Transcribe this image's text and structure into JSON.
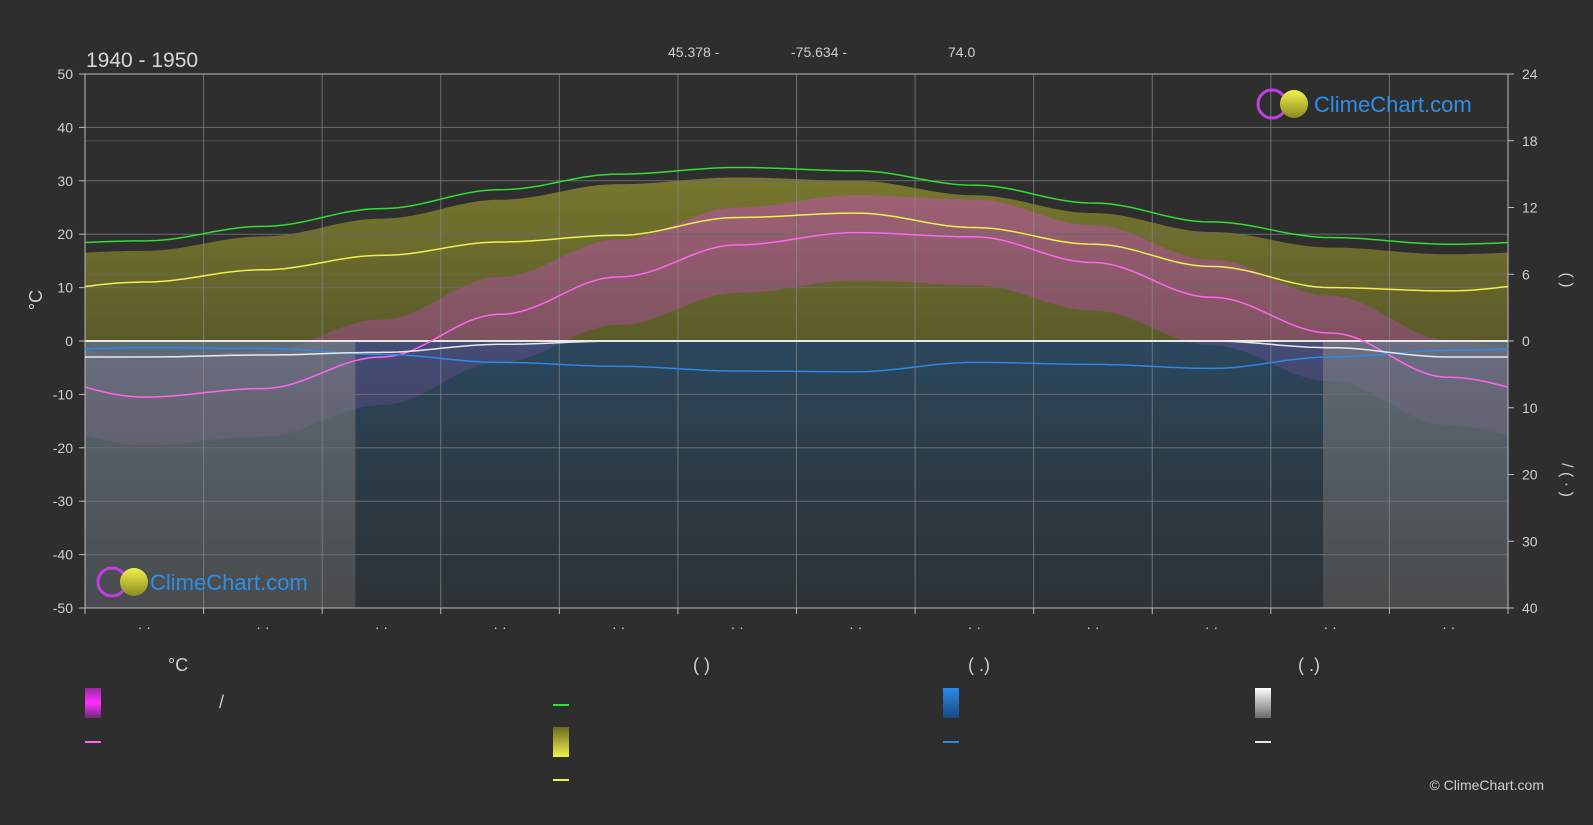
{
  "header": {
    "period": "1940 - 1950",
    "latitude": "45.378 -",
    "longitude": "-75.634 -",
    "elevation": "74.0"
  },
  "logo": {
    "text": "ClimeChart.com"
  },
  "copyright": "© ClimeChart.com",
  "legend": {
    "temp_head": "°C",
    "sun_head": "(            )",
    "rain_head": "(   .)",
    "snow_head": "(   .)",
    "slash": "/"
  },
  "colors": {
    "daylight": "#33dd33",
    "sunshine": "#f0f050",
    "temp_mean": "#ff66ee",
    "temp_range": "#e040e0",
    "rain": "#2a8ae8",
    "snow": "#e8e8e8",
    "grid": "#6a6a6a",
    "background": "#2e2e2e"
  },
  "chart_data": {
    "type": "line",
    "x_label": "",
    "months": [
      "· ·",
      "· ·",
      "· ·",
      "· ·",
      "· ·",
      "· ·",
      "· ·",
      "· ·",
      "· ·",
      "· ·",
      "· ·",
      "· ·"
    ],
    "left_axis": {
      "unit": "°C",
      "min": -50,
      "max": 50,
      "ticks": [
        50,
        40,
        30,
        20,
        10,
        0,
        -10,
        -20,
        -30,
        -40,
        -50
      ]
    },
    "right_axis_top": {
      "min": 0,
      "max": 24,
      "ticks": [
        24,
        18,
        12,
        6,
        0
      ],
      "label": "(     )"
    },
    "right_axis_bottom": {
      "min": 0,
      "max": 40,
      "ticks": [
        0,
        10,
        20,
        30,
        40
      ],
      "label": "/  (  ·  )"
    },
    "series": [
      {
        "key": "daylight",
        "axis": "hours",
        "values": [
          9.0,
          10.3,
          11.9,
          13.6,
          15.0,
          15.6,
          15.3,
          14.0,
          12.4,
          10.7,
          9.3,
          8.7
        ]
      },
      {
        "key": "sunshine",
        "axis": "hours",
        "values": [
          5.3,
          6.4,
          7.7,
          8.9,
          9.5,
          11.1,
          11.5,
          10.2,
          8.7,
          6.7,
          4.8,
          4.5
        ]
      },
      {
        "key": "temp_mean",
        "axis": "celsius",
        "values": [
          -10.5,
          -8.9,
          -3.0,
          5.0,
          12.0,
          18.0,
          20.3,
          19.5,
          14.7,
          8.2,
          1.5,
          -6.8
        ]
      },
      {
        "key": "rain",
        "axis": "mm_day",
        "values": [
          1.0,
          1.1,
          2.0,
          3.2,
          3.8,
          4.5,
          4.6,
          3.2,
          3.5,
          4.1,
          2.4,
          1.4
        ]
      },
      {
        "key": "snow",
        "axis": "mm_day",
        "values": [
          2.4,
          2.1,
          1.7,
          0.5,
          0.0,
          0.0,
          0.0,
          0.0,
          0.0,
          0.0,
          1.0,
          2.4
        ]
      }
    ]
  }
}
